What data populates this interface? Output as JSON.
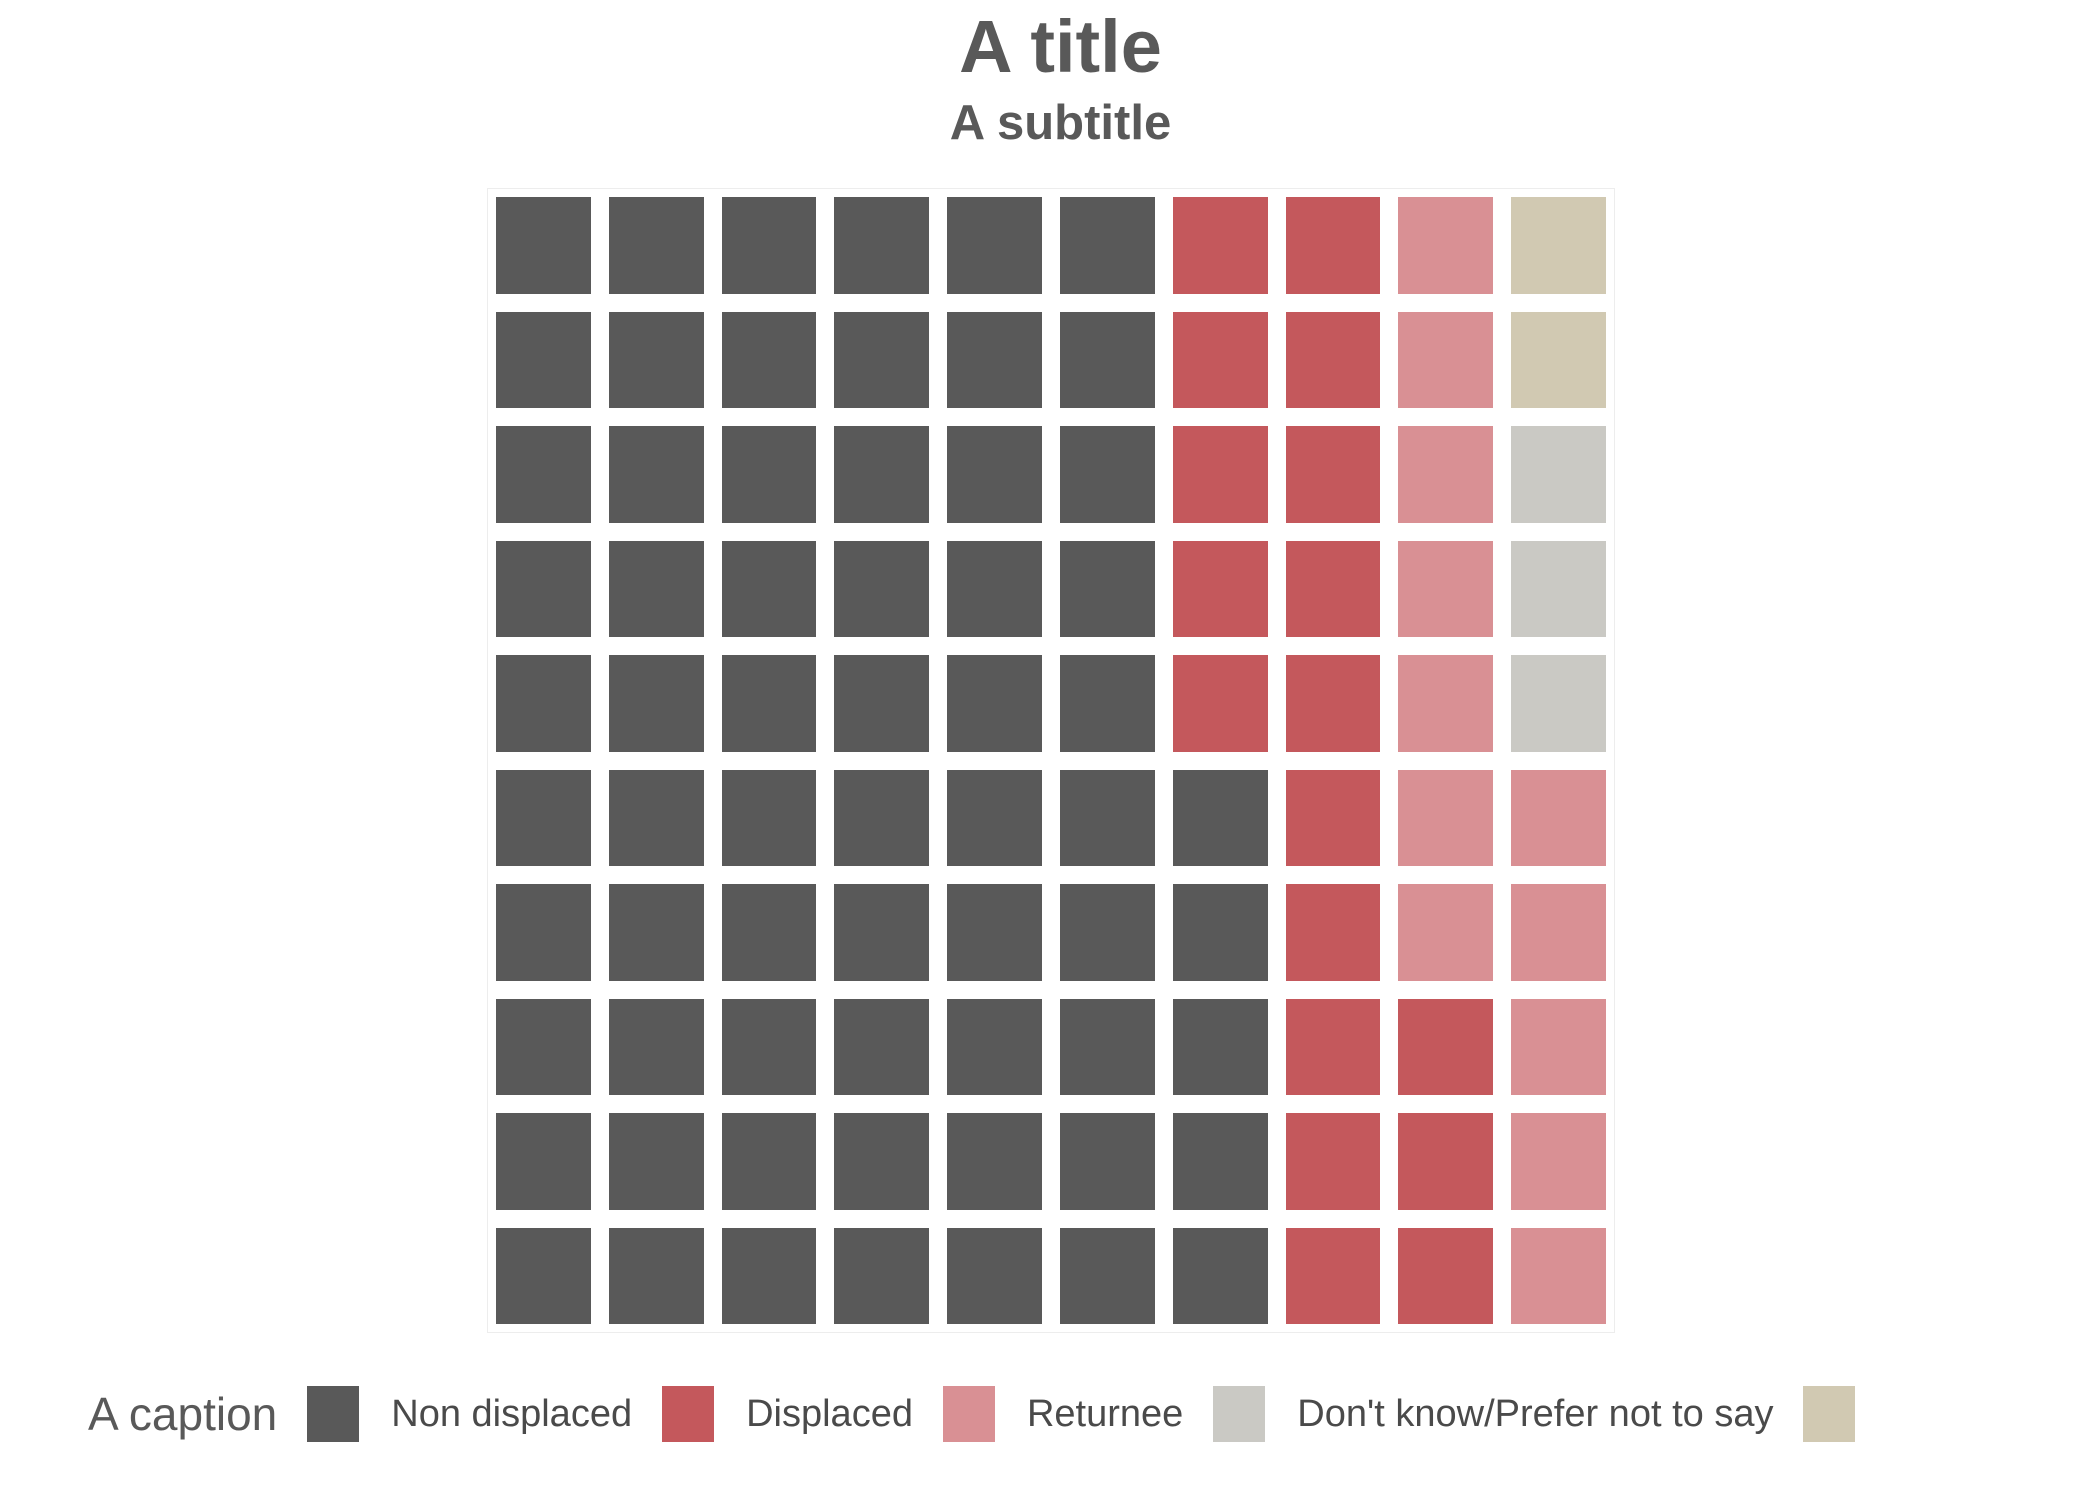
{
  "header": {
    "title": "A title",
    "subtitle": "A subtitle"
  },
  "legend": {
    "caption": "A caption",
    "items": [
      {
        "label": "Non displaced",
        "color_key": "non_displaced"
      },
      {
        "label": "Displaced",
        "color_key": "displaced"
      },
      {
        "label": "Returnee",
        "color_key": "returnee"
      },
      {
        "label": "Don't know/Prefer not to say",
        "color_key": "dont_know"
      },
      {
        "label": "",
        "color_key": "other"
      }
    ]
  },
  "colors": {
    "non_displaced": "#595959",
    "displaced": "#c4585c",
    "returnee": "#d99094",
    "dont_know": "#cac9c4",
    "other": "#d1c9b2",
    "panel_border": "#ededed",
    "title_text": "#595959",
    "legend_text": "#4a4a4a"
  },
  "chart_data": {
    "type": "waffle",
    "title": "A title",
    "subtitle": "A subtitle",
    "caption": "A caption",
    "grid_rows": 10,
    "grid_cols": 10,
    "total_units": 100,
    "fill_order": "column-major, bottom-to-top, left-to-right",
    "legend_position": "bottom-left",
    "series": [
      {
        "name": "Non displaced",
        "value": 65,
        "color_key": "non_displaced"
      },
      {
        "name": "Displaced",
        "value": 18,
        "color_key": "displaced"
      },
      {
        "name": "Returnee",
        "value": 12,
        "color_key": "returnee"
      },
      {
        "name": "Don't know/Prefer not to say",
        "value": 3,
        "color_key": "dont_know"
      },
      {
        "name": "",
        "value": 2,
        "color_key": "other"
      }
    ],
    "cell_key": {
      "N": "non_displaced",
      "D": "displaced",
      "R": "returnee",
      "K": "dont_know",
      "O": "other"
    },
    "rows_top_to_bottom": [
      "NNNNNNDDRO",
      "NNNNNNDDRO",
      "NNNNNNDDRK",
      "NNNNNNDDRK",
      "NNNNNNDDRK",
      "NNNNNNNDRR",
      "NNNNNNNDRR",
      "NNNNNNNDDR",
      "NNNNNNNDDR",
      "NNNNNNNDDR"
    ]
  }
}
